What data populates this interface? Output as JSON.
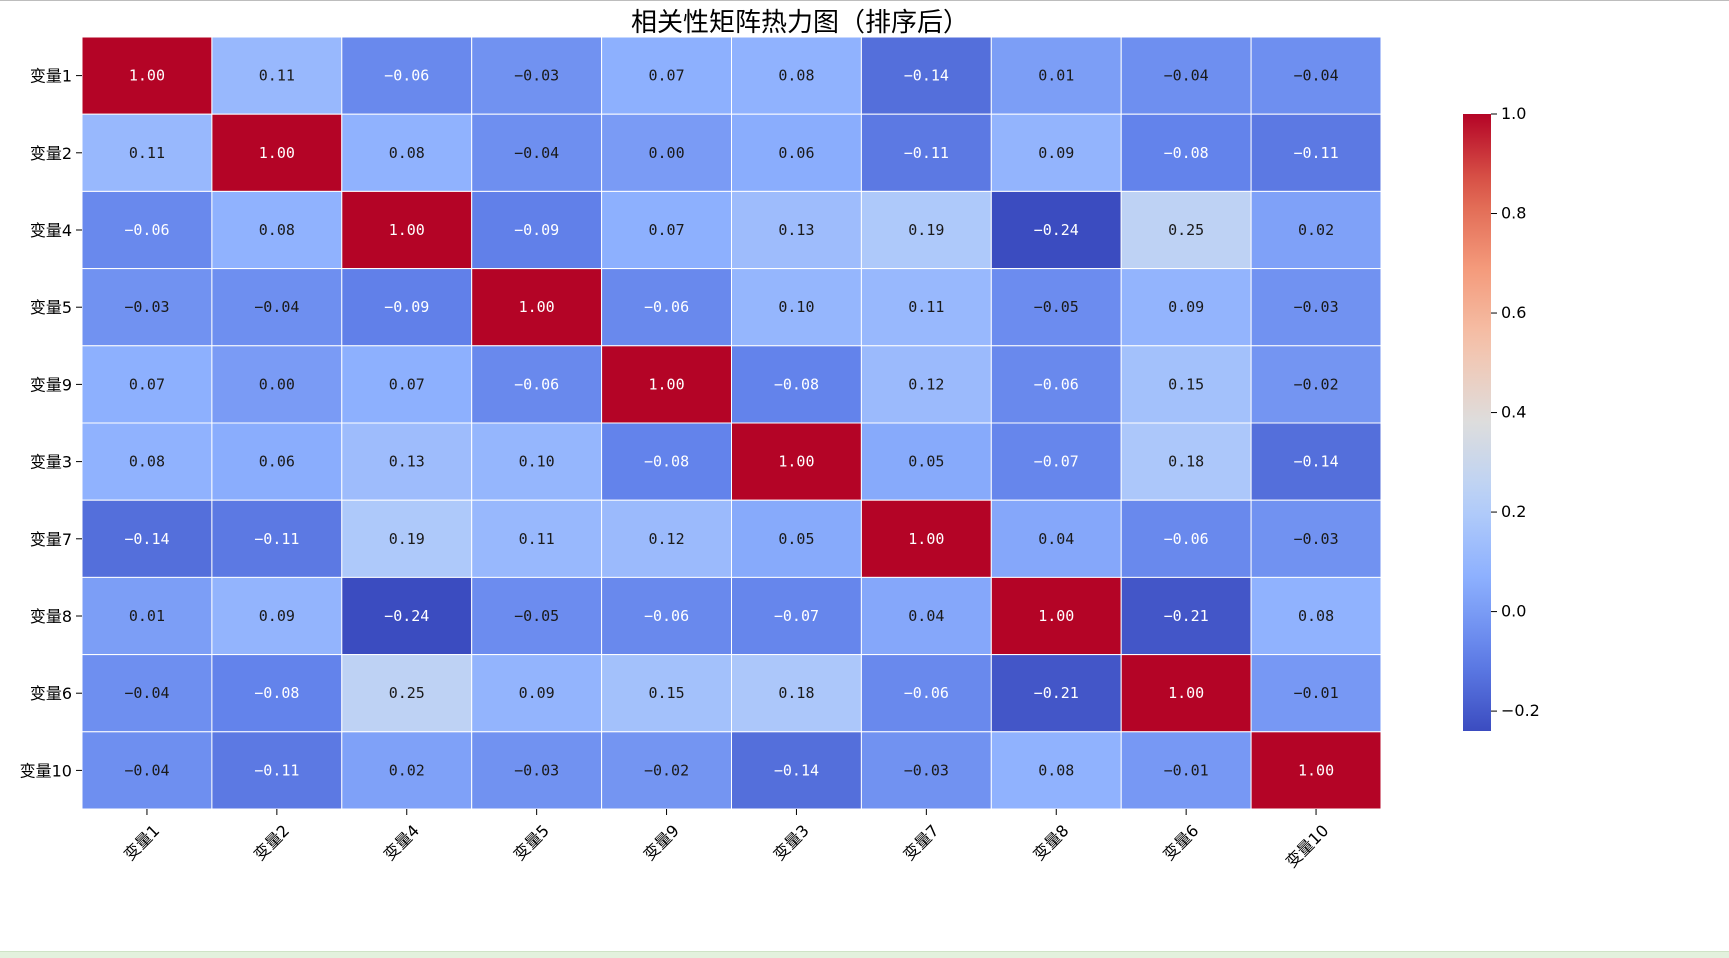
{
  "chart_data": {
    "type": "heatmap",
    "title": "相关性矩阵热力图（排序后）",
    "row_labels": [
      "变量1",
      "变量2",
      "变量4",
      "变量5",
      "变量9",
      "变量3",
      "变量7",
      "变量8",
      "变量6",
      "变量10"
    ],
    "col_labels": [
      "变量1",
      "变量2",
      "变量4",
      "变量5",
      "变量9",
      "变量3",
      "变量7",
      "变量8",
      "变量6",
      "变量10"
    ],
    "values": [
      [
        1.0,
        0.11,
        -0.06,
        -0.03,
        0.07,
        0.08,
        -0.14,
        0.01,
        -0.04,
        -0.04
      ],
      [
        0.11,
        1.0,
        0.08,
        -0.04,
        0.0,
        0.06,
        -0.11,
        0.09,
        -0.08,
        -0.11
      ],
      [
        -0.06,
        0.08,
        1.0,
        -0.09,
        0.07,
        0.13,
        0.19,
        -0.24,
        0.25,
        0.02
      ],
      [
        -0.03,
        -0.04,
        -0.09,
        1.0,
        -0.06,
        0.1,
        0.11,
        -0.05,
        0.09,
        -0.03
      ],
      [
        0.07,
        0.0,
        0.07,
        -0.06,
        1.0,
        -0.08,
        0.12,
        -0.06,
        0.15,
        -0.02
      ],
      [
        0.08,
        0.06,
        0.13,
        0.1,
        -0.08,
        1.0,
        0.05,
        -0.07,
        0.18,
        -0.14
      ],
      [
        -0.14,
        -0.11,
        0.19,
        0.11,
        0.12,
        0.05,
        1.0,
        0.04,
        -0.06,
        -0.03
      ],
      [
        0.01,
        0.09,
        -0.24,
        -0.05,
        -0.06,
        -0.07,
        0.04,
        1.0,
        -0.21,
        0.08
      ],
      [
        -0.04,
        -0.08,
        0.25,
        0.09,
        0.15,
        0.18,
        -0.06,
        -0.21,
        1.0,
        -0.01
      ],
      [
        -0.04,
        -0.11,
        0.02,
        -0.03,
        -0.02,
        -0.14,
        -0.03,
        0.08,
        -0.01,
        1.0
      ]
    ],
    "value_format": "0.00",
    "colormap": "coolwarm",
    "vmin": -0.24,
    "vmax": 1.0,
    "colorbar_ticks": [
      1.0,
      0.8,
      0.6,
      0.4,
      0.2,
      0.0,
      -0.2
    ],
    "colorbar_tick_labels": [
      "1.0",
      "0.8",
      "0.6",
      "0.4",
      "0.2",
      "0.0",
      "−0.2"
    ],
    "grid_line_color": "#ffffff",
    "x_tick_rotation_deg": 45
  }
}
